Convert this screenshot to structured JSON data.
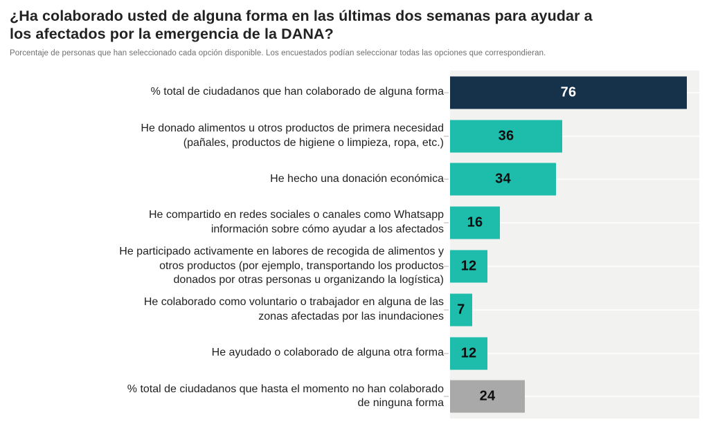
{
  "header": {
    "title": "¿Ha colaborado usted de alguna forma en las últimas dos semanas para ayudar a\nlos afectados por la emergencia de la DANA?",
    "subtitle": "Porcentaje de personas que han seleccionado cada opción disponible. Los encuestados podían seleccionar todas las opciones que correspondieran."
  },
  "chart_data": {
    "type": "bar",
    "orientation": "horizontal",
    "title": "¿Ha colaborado usted de alguna forma en las últimas dos semanas para ayudar a los afectados por la emergencia de la DANA?",
    "subtitle": "Porcentaje de personas que han seleccionado cada opción disponible. Los encuestados podían seleccionar todas las opciones que correspondieran.",
    "xlim": [
      0,
      80
    ],
    "grid": "white horizontal gridline at each category center on light gray panel",
    "legend": "none",
    "value_labels": "inside bars, centered",
    "categories": [
      "% total de ciudadanos que han colaborado de alguna forma",
      "He donado alimentos u otros productos de primera necesidad\n(pañales, productos de higiene o limpieza, ropa, etc.)",
      "He hecho una donación económica",
      "He compartido en redes sociales o canales como Whatsapp\ninformación sobre cómo ayudar a los afectados",
      "He participado activamente en labores de recogida de alimentos y\notros productos (por ejemplo, transportando los productos\ndonados por otras personas u organizando la logística)",
      "He colaborado como voluntario o trabajador en alguna de las\nzonas afectadas por las inundaciones",
      "He ayudado o colaborado de alguna otra forma",
      "% total de ciudadanos que hasta el momento no han colaborado\nde ninguna forma"
    ],
    "values": [
      76,
      36,
      34,
      16,
      12,
      7,
      12,
      24
    ],
    "bar_colors": [
      "#16324a",
      "#1dbcab",
      "#1dbcab",
      "#1dbcab",
      "#1dbcab",
      "#1dbcab",
      "#1dbcab",
      "#a9a9a9"
    ],
    "value_text_colors": [
      "#ffffff",
      "#0d0d0d",
      "#0d0d0d",
      "#0d0d0d",
      "#0d0d0d",
      "#0d0d0d",
      "#0d0d0d",
      "#0d0d0d"
    ]
  },
  "colors": {
    "accent_navy": "#16324a",
    "accent_teal": "#1dbcab",
    "neutral_gray": "#a9a9a9",
    "plot_background": "#f2f2f1",
    "gridline": "#fbfbfa",
    "category_tick": "#d8d8d8",
    "title_text": "#222222",
    "subtitle_text": "#6e6e6e",
    "label_text": "#1f1f1f"
  }
}
